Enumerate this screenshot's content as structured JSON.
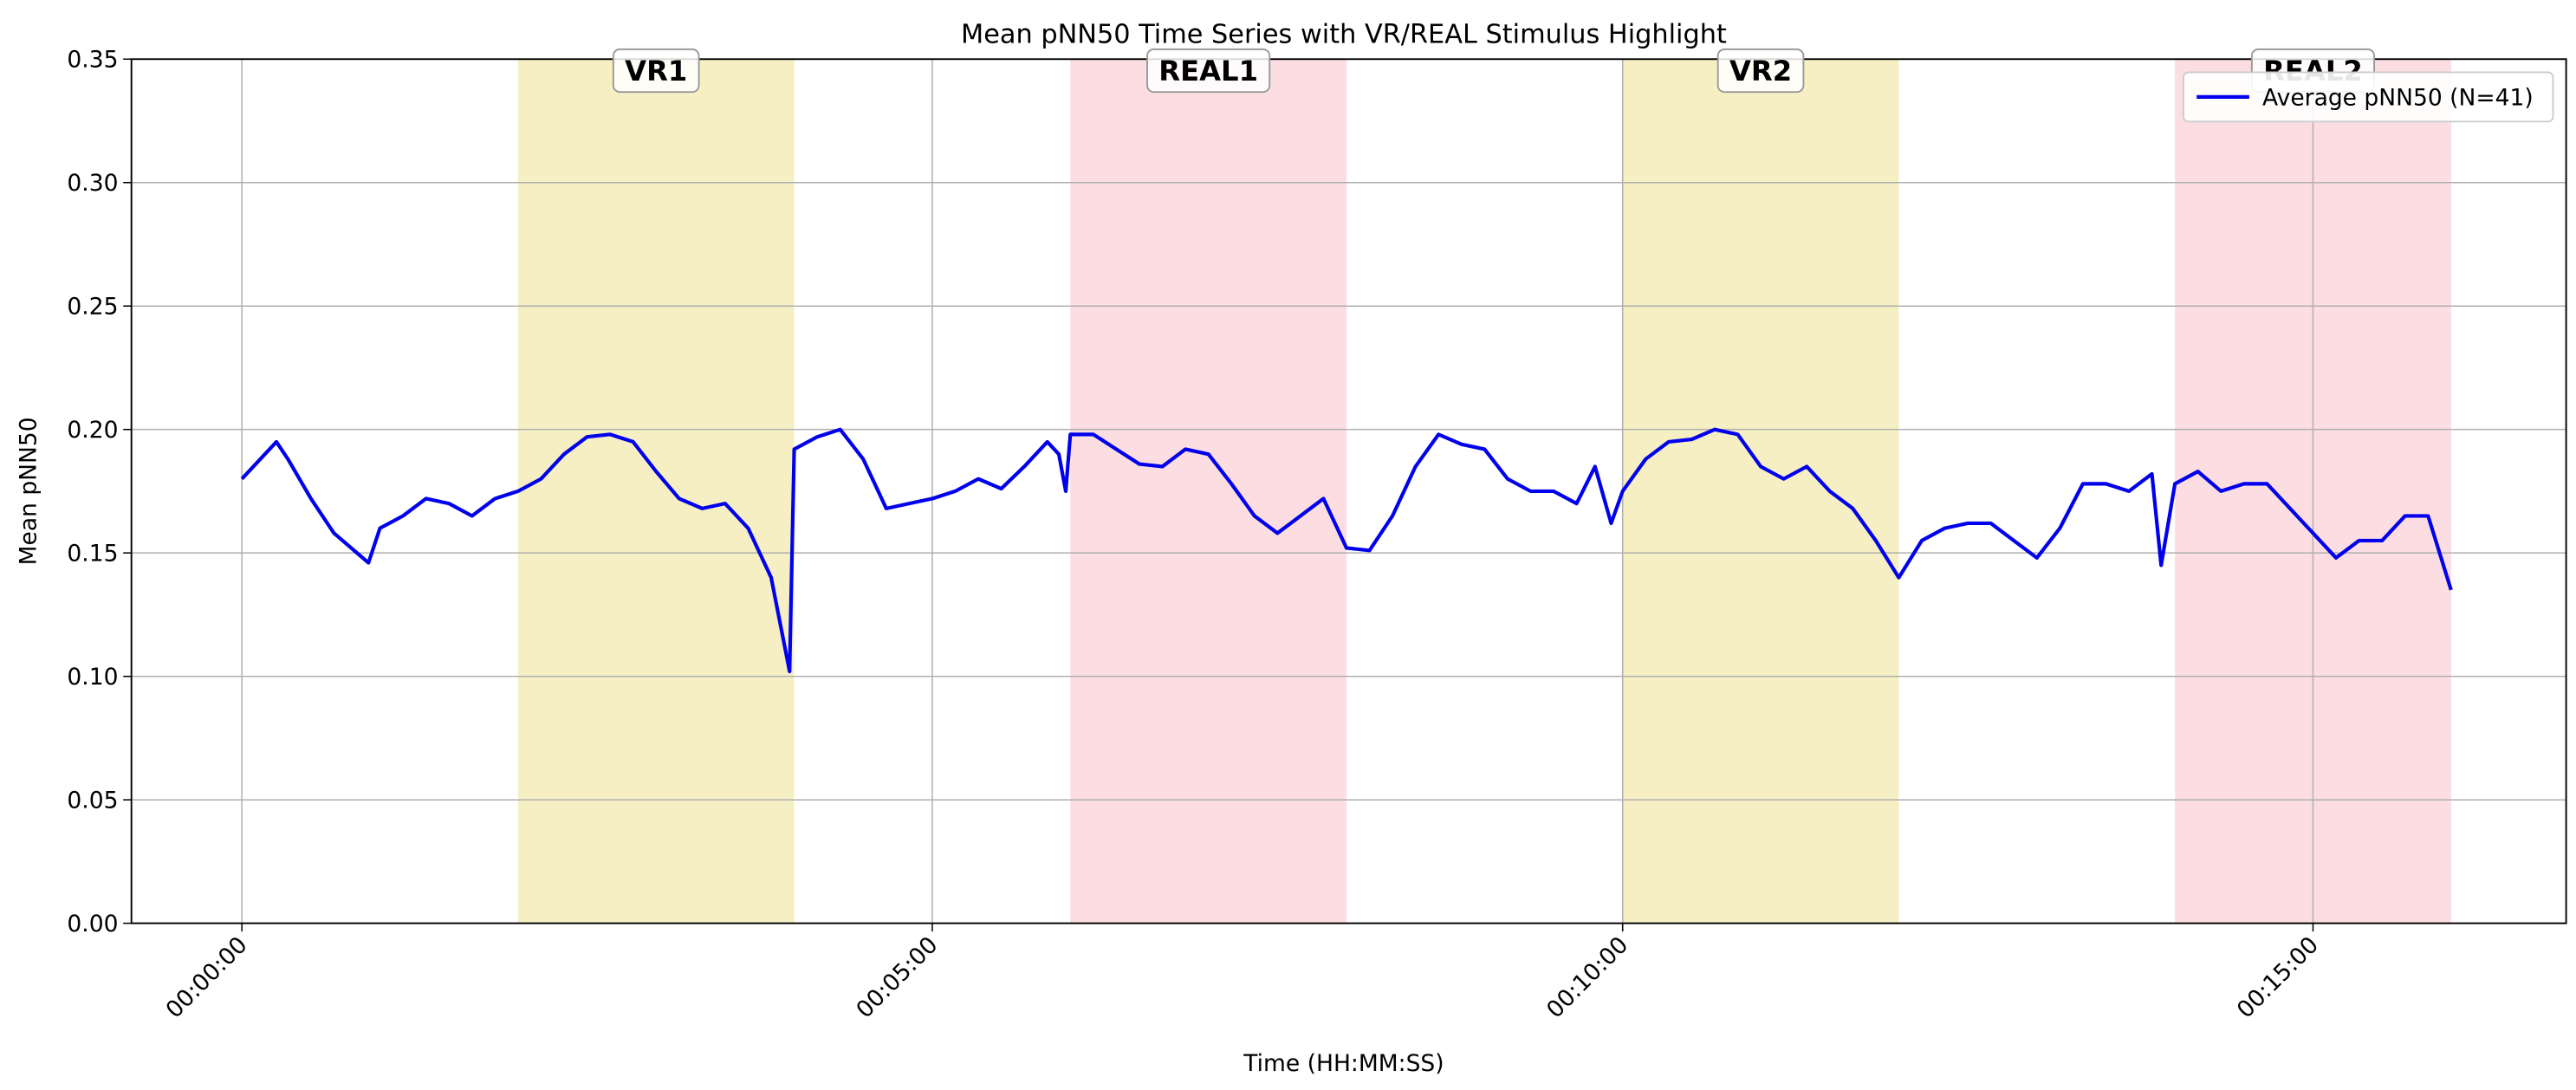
{
  "chart_data": {
    "type": "line",
    "title": "Mean pNN50 Time Series with VR/REAL Stimulus Highlight",
    "x_label": "Time (HH:MM:SS)",
    "y_label": "Mean pNN50",
    "xlim": [
      -48,
      1010
    ],
    "ylim": [
      0,
      0.35
    ],
    "xticks": [
      {
        "value": 0,
        "label": "00:00:00"
      },
      {
        "value": 300,
        "label": "00:05:00"
      },
      {
        "value": 600,
        "label": "00:10:00"
      },
      {
        "value": 900,
        "label": "00:15:00"
      }
    ],
    "yticks": [
      {
        "value": 0,
        "label": "0.00"
      },
      {
        "value": 0.05,
        "label": "0.05"
      },
      {
        "value": 0.1,
        "label": "0.10"
      },
      {
        "value": 0.15,
        "label": "0.15"
      },
      {
        "value": 0.2,
        "label": "0.20"
      },
      {
        "value": 0.25,
        "label": "0.25"
      },
      {
        "value": 0.3,
        "label": "0.30"
      },
      {
        "value": 0.35,
        "label": "0.35"
      }
    ],
    "grid": true,
    "legend": "upper right",
    "regions": [
      {
        "label": "VR1",
        "start": 120,
        "end": 240,
        "color": "#f5efc3"
      },
      {
        "label": "REAL1",
        "start": 360,
        "end": 480,
        "color": "#fcdde2"
      },
      {
        "label": "VR2",
        "start": 600,
        "end": 720,
        "color": "#f5efc3"
      },
      {
        "label": "REAL2",
        "start": 840,
        "end": 960,
        "color": "#fcdde2"
      }
    ],
    "x": [
      0,
      10,
      15,
      20,
      30,
      40,
      50,
      55,
      60,
      70,
      80,
      90,
      100,
      110,
      120,
      130,
      140,
      150,
      160,
      170,
      180,
      190,
      200,
      210,
      220,
      230,
      238,
      240,
      250,
      260,
      270,
      280,
      290,
      300,
      310,
      320,
      330,
      340,
      350,
      355,
      358,
      360,
      370,
      380,
      390,
      400,
      410,
      420,
      430,
      440,
      450,
      460,
      470,
      480,
      490,
      500,
      510,
      520,
      530,
      540,
      550,
      560,
      570,
      580,
      588,
      595,
      600,
      610,
      620,
      630,
      640,
      650,
      660,
      670,
      680,
      690,
      700,
      710,
      720,
      730,
      740,
      750,
      760,
      770,
      780,
      790,
      800,
      810,
      820,
      830,
      834,
      840,
      850,
      860,
      870,
      880,
      890,
      900,
      910,
      920,
      930,
      940,
      950,
      960
    ],
    "series": [
      {
        "name": "Average pNN50 (N=41)",
        "color": "#0000ee",
        "values": [
          0.18,
          0.19,
          0.195,
          0.188,
          0.172,
          0.158,
          0.15,
          0.146,
          0.16,
          0.165,
          0.172,
          0.17,
          0.165,
          0.172,
          0.175,
          0.18,
          0.19,
          0.197,
          0.198,
          0.195,
          0.183,
          0.172,
          0.168,
          0.17,
          0.16,
          0.14,
          0.102,
          0.192,
          0.197,
          0.2,
          0.188,
          0.168,
          0.17,
          0.172,
          0.175,
          0.18,
          0.176,
          0.185,
          0.195,
          0.19,
          0.175,
          0.198,
          0.198,
          0.192,
          0.186,
          0.185,
          0.192,
          0.19,
          0.178,
          0.165,
          0.158,
          0.165,
          0.172,
          0.152,
          0.151,
          0.165,
          0.185,
          0.198,
          0.194,
          0.192,
          0.18,
          0.175,
          0.175,
          0.17,
          0.185,
          0.162,
          0.175,
          0.188,
          0.195,
          0.196,
          0.2,
          0.198,
          0.185,
          0.18,
          0.185,
          0.175,
          0.168,
          0.155,
          0.14,
          0.155,
          0.16,
          0.162,
          0.162,
          0.155,
          0.148,
          0.16,
          0.178,
          0.178,
          0.175,
          0.182,
          0.145,
          0.178,
          0.183,
          0.175,
          0.178,
          0.178,
          0.168,
          0.158,
          0.148,
          0.155,
          0.155,
          0.165,
          0.165,
          0.135
        ]
      }
    ]
  }
}
